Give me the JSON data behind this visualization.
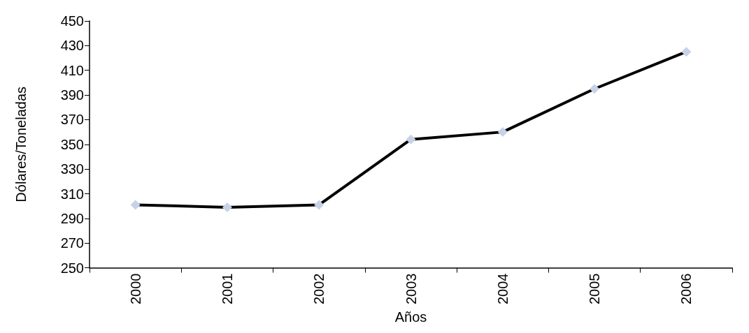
{
  "chart_data": {
    "type": "line",
    "xlabel": "Años",
    "ylabel": "Dólares/Toneladas",
    "categories": [
      "2000",
      "2001",
      "2002",
      "2003",
      "2004",
      "2005",
      "2006"
    ],
    "series": [
      {
        "color": "#000000",
        "values": [
          301,
          299,
          301,
          354,
          360,
          395,
          425
        ]
      }
    ],
    "ylim": [
      250,
      450
    ],
    "yticks": [
      250,
      270,
      290,
      310,
      330,
      350,
      370,
      390,
      410,
      430,
      450
    ],
    "grid": false,
    "marker": "diamond",
    "line_style": "solid"
  }
}
